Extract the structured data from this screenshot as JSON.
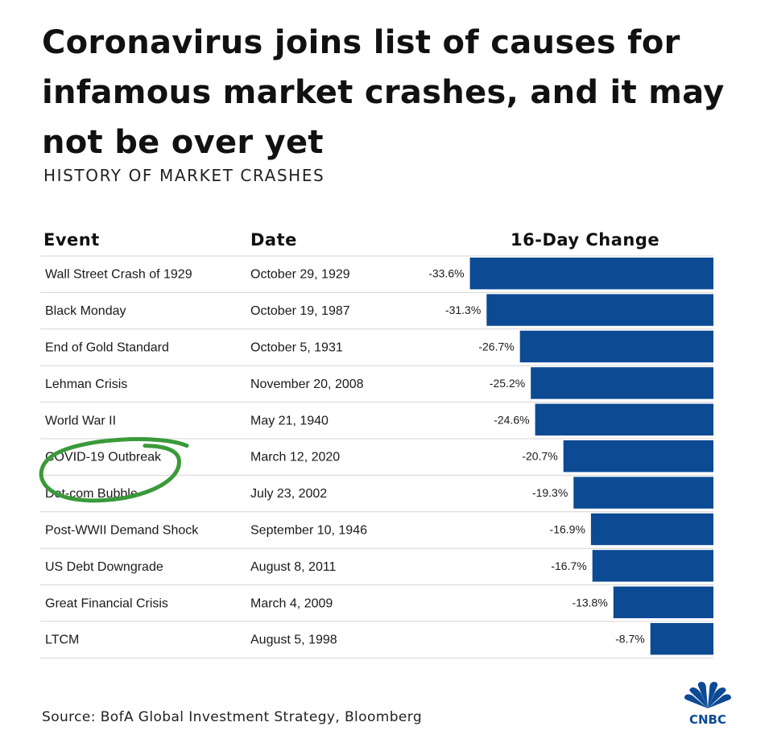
{
  "headline": "Coronavirus joins list of causes for infamous market crashes, and it may not be over yet",
  "chart_data": {
    "type": "bar",
    "title": "HISTORY OF MARKET CRASHES",
    "columns": [
      "Event",
      "Date",
      "16-Day Change"
    ],
    "categories": [
      "Wall Street Crash of 1929",
      "Black Monday",
      "End of Gold Standard",
      "Lehman Crisis",
      "World War II",
      "COVID-19 Outbreak",
      "Dot-com Bubble",
      "Post-WWII Demand Shock",
      "US Debt Downgrade",
      "Great Financial Crisis",
      "LTCM"
    ],
    "dates": [
      "October 29, 1929",
      "October 19, 1987",
      "October 5, 1931",
      "November 20, 2008",
      "May 21, 1940",
      "March 12, 2020",
      "July 23, 2002",
      "September 10, 1946",
      "August 8, 2011",
      "March 4, 2009",
      "August 5, 1998"
    ],
    "values": [
      -33.6,
      -31.3,
      -26.7,
      -25.2,
      -24.6,
      -20.7,
      -19.3,
      -16.9,
      -16.7,
      -13.8,
      -8.7
    ],
    "value_labels": [
      "-33.6%",
      "-31.3%",
      "-26.7%",
      "-25.2%",
      "-24.6%",
      "-20.7%",
      "-19.3%",
      "-16.9%",
      "-16.7%",
      "-13.8%",
      "-8.7%"
    ],
    "bar_color": "#0c4a94",
    "highlight": {
      "category": "COVID-19 Outbreak",
      "style": "hand-drawn circle",
      "color": "#3a9a3a"
    }
  },
  "source": "Source: BofA Global Investment Strategy, Bloomberg",
  "logo_text": "CNBC"
}
